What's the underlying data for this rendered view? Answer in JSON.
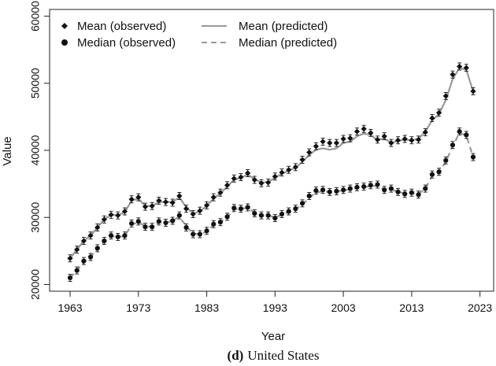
{
  "chart_data": {
    "type": "scatter",
    "xlabel": "Year",
    "ylabel": "Value",
    "xlim": [
      1960,
      2025
    ],
    "ylim": [
      19000,
      61000
    ],
    "x_ticks": [
      1963,
      1973,
      1983,
      1993,
      2003,
      2013,
      2023
    ],
    "y_ticks": [
      20000,
      30000,
      40000,
      50000,
      60000
    ],
    "caption_letter": "(d)",
    "caption_text": "United States",
    "legend": {
      "placement": "top-left",
      "items": [
        {
          "label": "Mean (observed)",
          "marker": "diamond"
        },
        {
          "label": "Median (observed)",
          "marker": "circle"
        },
        {
          "label": "Mean (predicted)",
          "style": "solid"
        },
        {
          "label": "Median (predicted)",
          "style": "dashed"
        }
      ]
    },
    "colors": {
      "observed": "#111111",
      "predicted": "#999999"
    },
    "years": [
      1963,
      1964,
      1965,
      1966,
      1967,
      1968,
      1969,
      1970,
      1971,
      1972,
      1973,
      1974,
      1975,
      1976,
      1977,
      1978,
      1979,
      1980,
      1981,
      1982,
      1983,
      1984,
      1985,
      1986,
      1987,
      1988,
      1989,
      1990,
      1991,
      1992,
      1993,
      1994,
      1995,
      1996,
      1997,
      1998,
      1999,
      2000,
      2001,
      2002,
      2003,
      2004,
      2005,
      2006,
      2007,
      2008,
      2009,
      2010,
      2011,
      2012,
      2013,
      2014,
      2015,
      2016,
      2017,
      2018,
      2019,
      2020,
      2021,
      2022
    ],
    "series": [
      {
        "name": "Mean (observed)",
        "values": [
          23900,
          25200,
          26500,
          27300,
          28500,
          29700,
          30400,
          30300,
          30900,
          32700,
          33000,
          31600,
          31700,
          32500,
          32300,
          32200,
          33200,
          31300,
          30500,
          31000,
          31800,
          33000,
          33700,
          34800,
          35800,
          36000,
          36600,
          35600,
          35100,
          35200,
          36100,
          36700,
          37100,
          37500,
          38600,
          39700,
          40600,
          41300,
          41100,
          41100,
          41700,
          41800,
          42800,
          43200,
          42600,
          41600,
          42100,
          41100,
          41500,
          41700,
          41500,
          41600,
          42700,
          44800,
          45600,
          48100,
          51300,
          52500,
          52300,
          48800
        ]
      },
      {
        "name": "Median (observed)",
        "values": [
          21000,
          22100,
          23500,
          24100,
          25400,
          26500,
          27300,
          27100,
          27300,
          29100,
          29400,
          28600,
          28600,
          29400,
          29200,
          29500,
          30300,
          28500,
          27500,
          27500,
          28000,
          29000,
          29300,
          30100,
          31400,
          31300,
          31500,
          30600,
          30300,
          30300,
          29900,
          30500,
          30900,
          31300,
          32100,
          33200,
          34000,
          34100,
          33800,
          33900,
          34100,
          34300,
          34500,
          34600,
          34800,
          34900,
          34100,
          34300,
          33800,
          33500,
          33700,
          33400,
          34300,
          36400,
          36800,
          38500,
          40800,
          42800,
          42300,
          39000
        ]
      },
      {
        "name": "Mean (predicted)",
        "values": [
          23900,
          25200,
          26500,
          27300,
          28500,
          29700,
          30400,
          30300,
          30800,
          32500,
          32800,
          31700,
          31700,
          32300,
          32300,
          32300,
          33000,
          31500,
          30600,
          30900,
          31700,
          32800,
          33600,
          34600,
          35600,
          35900,
          36400,
          35700,
          35200,
          35300,
          35900,
          36500,
          37000,
          37400,
          38300,
          39300,
          40100,
          40300,
          40100,
          40300,
          41100,
          41300,
          42100,
          42500,
          42300,
          41500,
          41800,
          41100,
          41400,
          41600,
          41500,
          41700,
          42800,
          44500,
          45400,
          47500,
          50600,
          52300,
          52000,
          48800
        ]
      },
      {
        "name": "Median (predicted)",
        "values": [
          21000,
          22100,
          23400,
          24100,
          25300,
          26400,
          27200,
          27100,
          27200,
          28900,
          29300,
          28700,
          28600,
          29300,
          29200,
          29500,
          30100,
          28700,
          27600,
          27500,
          27900,
          28900,
          29300,
          30000,
          31200,
          31300,
          31400,
          30700,
          30300,
          30300,
          30000,
          30400,
          30800,
          31200,
          31900,
          32900,
          33700,
          33900,
          33800,
          33900,
          34000,
          34200,
          34400,
          34500,
          34700,
          34700,
          34200,
          34200,
          33800,
          33600,
          33600,
          33500,
          34300,
          36200,
          36800,
          38300,
          40600,
          42600,
          42200,
          39000
        ]
      }
    ]
  }
}
